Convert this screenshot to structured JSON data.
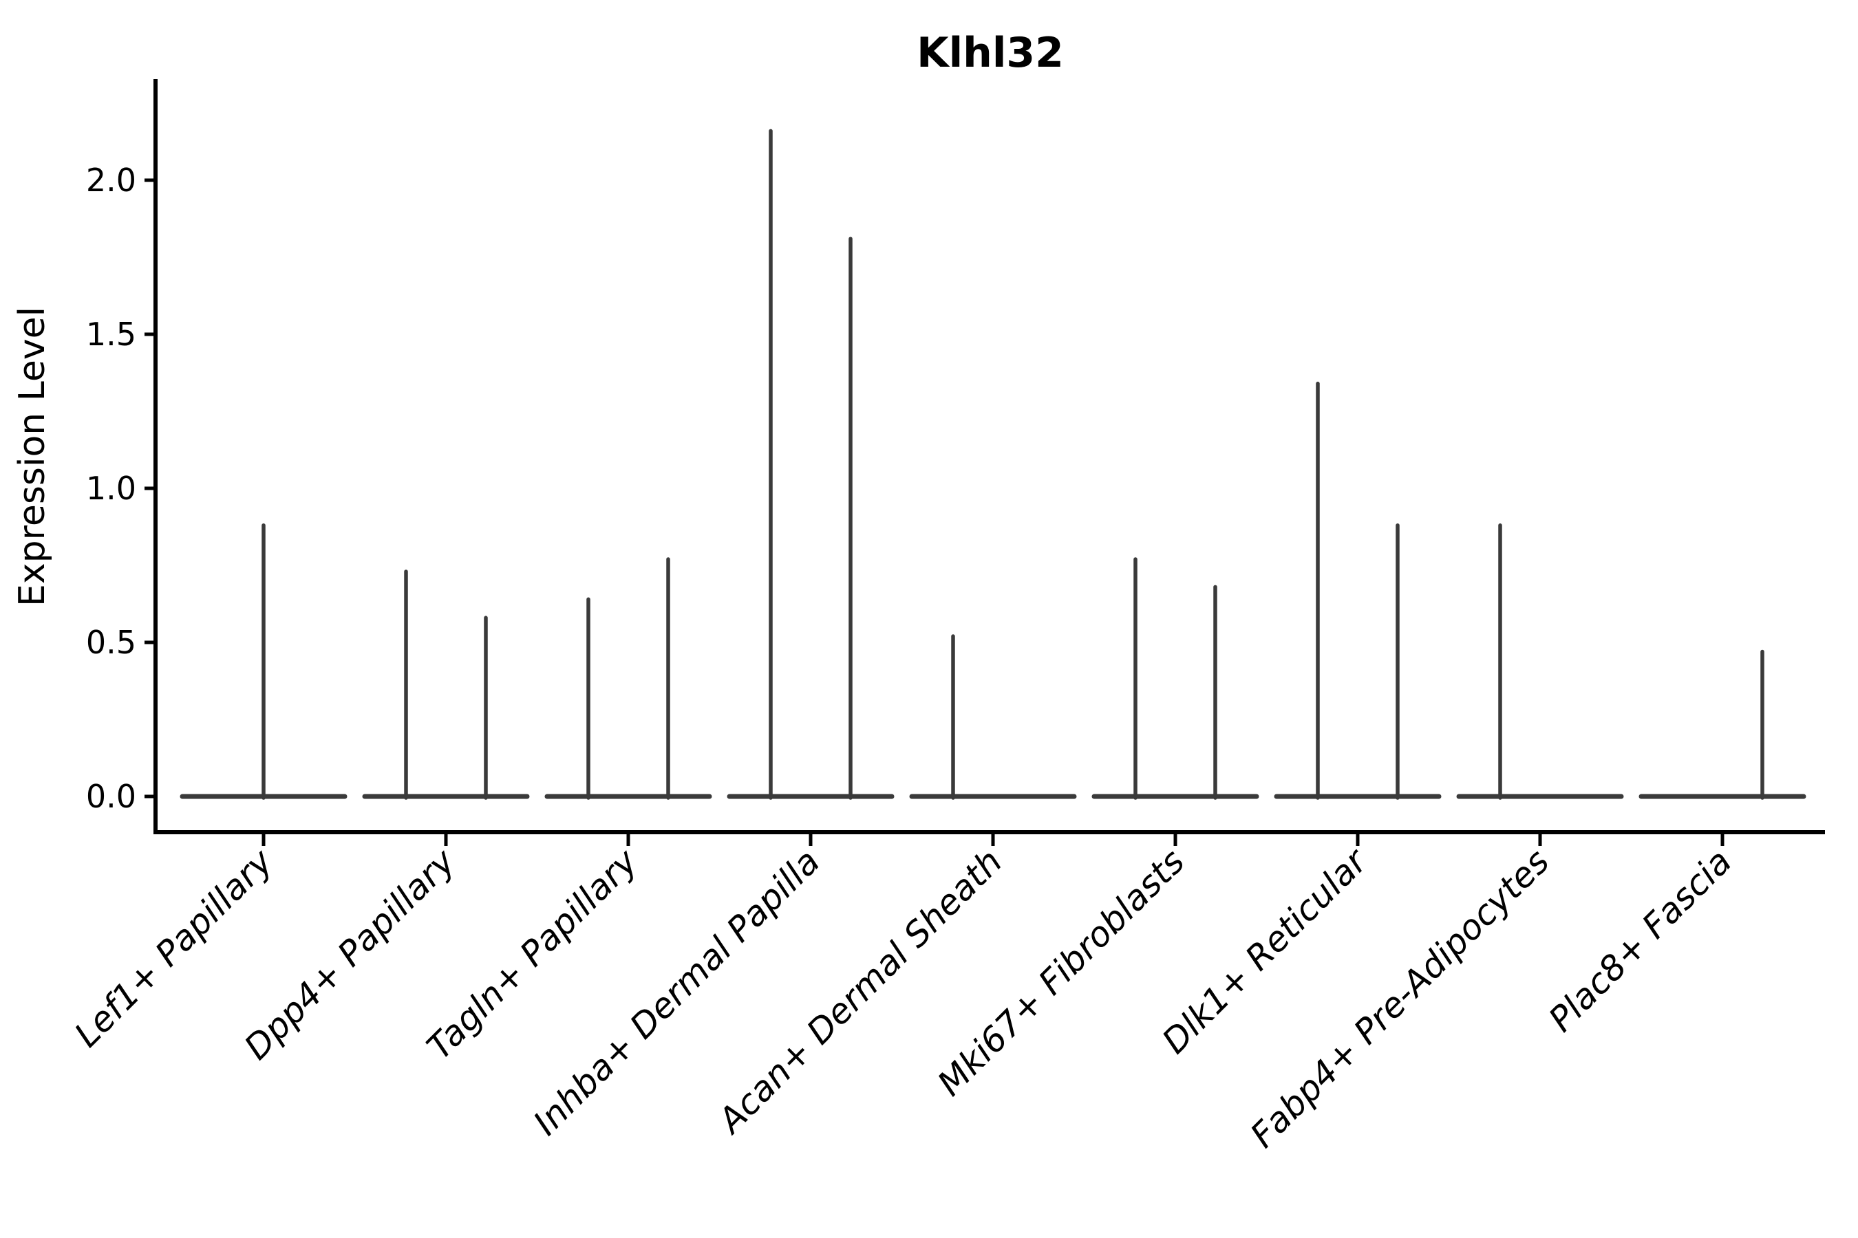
{
  "chart_data": {
    "type": "violin",
    "title": "Klhl32",
    "ylabel": "Expression Level",
    "xlabel": "",
    "grid": false,
    "legend": "none",
    "background": "#ffffff",
    "ylim": [
      -0.12,
      2.32
    ],
    "ytick_values": [
      0.0,
      0.5,
      1.0,
      1.5,
      2.0
    ],
    "ytick_labels": [
      "0.0",
      "0.5",
      "1.0",
      "1.5",
      "2.0"
    ],
    "categories": [
      "Lef1+ Papillary",
      "Dpp4+ Papillary",
      "Tagln+ Papillary",
      "Inhba+ Dermal Papilla",
      "Acan+ Dermal Sheath",
      "Mki67+ Fibroblasts",
      "Dlk1+ Reticular",
      "Fabp4+ Pre-Adipocytes",
      "Plac8+ Fascia"
    ],
    "baseline_value": 0.0,
    "series": [
      {
        "category": "Lef1+ Papillary",
        "spikes": [
          {
            "position": "center",
            "max": 0.88
          }
        ]
      },
      {
        "category": "Dpp4+ Papillary",
        "spikes": [
          {
            "position": "left",
            "max": 0.73
          },
          {
            "position": "right",
            "max": 0.58
          }
        ]
      },
      {
        "category": "Tagln+ Papillary",
        "spikes": [
          {
            "position": "left",
            "max": 0.64
          },
          {
            "position": "right",
            "max": 0.77
          }
        ]
      },
      {
        "category": "Inhba+ Dermal Papilla",
        "spikes": [
          {
            "position": "left",
            "max": 2.16
          },
          {
            "position": "right",
            "max": 1.81
          }
        ]
      },
      {
        "category": "Acan+ Dermal Sheath",
        "spikes": [
          {
            "position": "left",
            "max": 0.52
          }
        ]
      },
      {
        "category": "Mki67+ Fibroblasts",
        "spikes": [
          {
            "position": "left",
            "max": 0.77
          },
          {
            "position": "right",
            "max": 0.68
          }
        ]
      },
      {
        "category": "Dlk1+ Reticular",
        "spikes": [
          {
            "position": "left",
            "max": 1.34
          },
          {
            "position": "right",
            "max": 0.88
          }
        ]
      },
      {
        "category": "Fabp4+ Pre-Adipocytes",
        "spikes": [
          {
            "position": "left",
            "max": 0.88
          }
        ]
      },
      {
        "category": "Plac8+ Fascia",
        "spikes": [
          {
            "position": "right",
            "max": 0.47
          }
        ]
      }
    ],
    "colors": {
      "violin_line": "#3a3a3a",
      "axis": "#000000",
      "text": "#000000",
      "background": "#ffffff"
    }
  }
}
